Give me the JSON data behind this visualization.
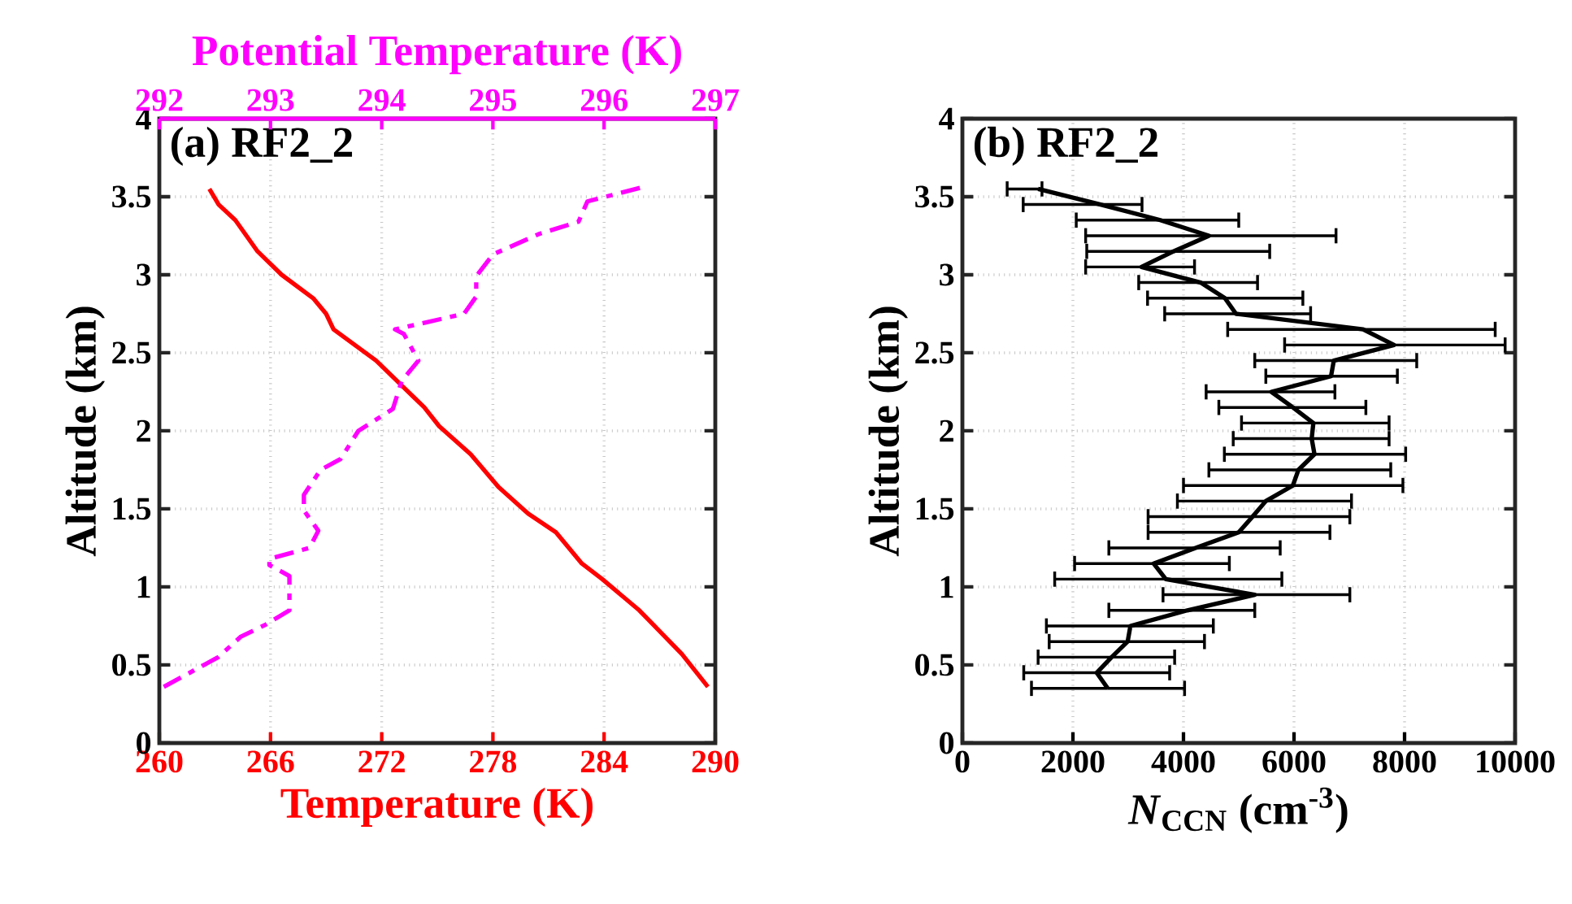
{
  "chart_data": [
    {
      "type": "line",
      "title": "(a) RF2_2",
      "xlabel": "Temperature (K)",
      "x2label": "Potential Temperature (K)",
      "ylabel": "Altitude (km)",
      "xlim": [
        260,
        290
      ],
      "xticks": [
        260,
        266,
        272,
        278,
        284,
        290
      ],
      "x2lim": [
        292,
        297
      ],
      "x2ticks": [
        292,
        293,
        294,
        295,
        296,
        297
      ],
      "ylim": [
        0,
        4
      ],
      "yticks": [
        0,
        0.5,
        1,
        1.5,
        2,
        2.5,
        3,
        3.5,
        4
      ],
      "grid": true,
      "series": [
        {
          "color": "#ff0000",
          "line_style": "solid",
          "x": [
            262.7,
            263.2,
            264.1,
            265.3,
            266.6,
            268.3,
            269.0,
            269.4,
            271.7,
            274.3,
            275.1,
            276.8,
            278.3,
            279.9,
            281.4,
            282.8,
            283.9,
            285.9,
            288.2,
            289.6
          ],
          "values": [
            3.55,
            3.45,
            3.35,
            3.15,
            3.0,
            2.85,
            2.75,
            2.65,
            2.45,
            2.15,
            2.03,
            1.85,
            1.64,
            1.47,
            1.35,
            1.15,
            1.05,
            0.85,
            0.57,
            0.36
          ]
        },
        {
          "color": "#ff00ff",
          "axis": "x2",
          "line_style": "dashed",
          "x": [
            292.04,
            292.53,
            292.73,
            292.96,
            293.17,
            293.17,
            292.99,
            292.99,
            293.35,
            293.43,
            293.3,
            293.3,
            293.45,
            293.63,
            293.79,
            294.1,
            294.18,
            294.33,
            294.2,
            294.12,
            294.74,
            294.85,
            294.85,
            295.0,
            295.41,
            295.77,
            295.85,
            296.34
          ],
          "values": [
            0.36,
            0.55,
            0.68,
            0.76,
            0.85,
            1.07,
            1.14,
            1.18,
            1.25,
            1.36,
            1.49,
            1.59,
            1.75,
            1.82,
            2.0,
            2.14,
            2.32,
            2.45,
            2.62,
            2.65,
            2.75,
            2.86,
            2.99,
            3.13,
            3.26,
            3.34,
            3.47,
            3.56
          ]
        }
      ]
    },
    {
      "type": "line",
      "title": "(b) RF2_2",
      "xlabel": "*N*$_{CCN}$ (cm$^{-3}$)",
      "ylabel": "Altitude (km)",
      "xlim": [
        0,
        10000
      ],
      "xticks": [
        0,
        2000,
        4000,
        6000,
        8000,
        10000
      ],
      "ylim": [
        0,
        4
      ],
      "yticks": [
        0,
        0.5,
        1,
        1.5,
        2,
        2.5,
        3,
        3.5,
        4
      ],
      "grid": true,
      "series": [
        {
          "color": "#000000",
          "line_style": "solid",
          "x": [
            1370,
            2500,
            3580,
            4460,
            3820,
            3240,
            4310,
            4750,
            4950,
            7250,
            7810,
            6720,
            6670,
            5590,
            5980,
            6350,
            6320,
            6370,
            6080,
            5980,
            5490,
            5250,
            5000,
            4220,
            3460,
            3680,
            5290,
            4070,
            3040,
            2990,
            2700,
            2430,
            2630
          ],
          "values": [
            3.55,
            3.45,
            3.35,
            3.25,
            3.15,
            3.05,
            2.95,
            2.85,
            2.75,
            2.65,
            2.55,
            2.45,
            2.35,
            2.25,
            2.15,
            2.05,
            1.95,
            1.85,
            1.75,
            1.65,
            1.55,
            1.45,
            1.35,
            1.25,
            1.15,
            1.05,
            0.95,
            0.85,
            0.75,
            0.65,
            0.55,
            0.45,
            0.35
          ],
          "xerrors": [
            [
              810,
              1440
            ],
            [
              1100,
              3250
            ],
            [
              2060,
              5000
            ],
            [
              2230,
              6760
            ],
            [
              2250,
              5560
            ],
            [
              2230,
              4200
            ],
            [
              3190,
              5340
            ],
            [
              3350,
              6160
            ],
            [
              3660,
              6300
            ],
            [
              4800,
              9640
            ],
            [
              5830,
              9820
            ],
            [
              5290,
              8220
            ],
            [
              5490,
              7870
            ],
            [
              4410,
              6740
            ],
            [
              4640,
              7300
            ],
            [
              5050,
              7720
            ],
            [
              4900,
              7720
            ],
            [
              4740,
              8020
            ],
            [
              4460,
              7750
            ],
            [
              4000,
              7970
            ],
            [
              3890,
              7040
            ],
            [
              3360,
              7010
            ],
            [
              3360,
              6650
            ],
            [
              2650,
              5750
            ],
            [
              2030,
              4830
            ],
            [
              1670,
              5780
            ],
            [
              3630,
              7010
            ],
            [
              2650,
              5290
            ],
            [
              1520,
              4540
            ],
            [
              1570,
              4380
            ],
            [
              1370,
              3840
            ],
            [
              1110,
              3750
            ],
            [
              1250,
              4020
            ]
          ]
        }
      ]
    }
  ]
}
